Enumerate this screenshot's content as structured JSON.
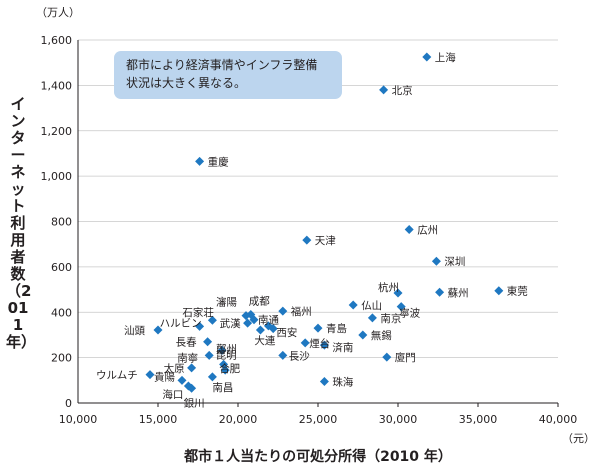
{
  "chart_data": {
    "type": "scatter",
    "ylabel": "インターネット利用者数（2011年）",
    "yunit": "（万人）",
    "xlabel": "都市１人当たりの可処分所得（2010 年）",
    "xunit": "（元）",
    "xlim": [
      10000,
      40000
    ],
    "ylim": [
      0,
      1600
    ],
    "xticks": [
      "10,000",
      "15,000",
      "20,000",
      "25,000",
      "30,000",
      "35,000",
      "40,000"
    ],
    "yticks": [
      "0",
      "200",
      "400",
      "600",
      "800",
      "1,000",
      "1,200",
      "1,400",
      "1,600"
    ],
    "grid": true,
    "marker_color": "#1f78c1",
    "annotation": [
      "都市により経済事情やインフラ整備",
      "状況は大きく異なる。"
    ],
    "points": [
      {
        "label": "上海",
        "x": 31800,
        "y": 1525
      },
      {
        "label": "北京",
        "x": 29100,
        "y": 1380
      },
      {
        "label": "重慶",
        "x": 17600,
        "y": 1065
      },
      {
        "label": "広州",
        "x": 30700,
        "y": 765
      },
      {
        "label": "天津",
        "x": 24300,
        "y": 718
      },
      {
        "label": "深圳",
        "x": 32400,
        "y": 625
      },
      {
        "label": "東莞",
        "x": 36300,
        "y": 495
      },
      {
        "label": "蘇州",
        "x": 32600,
        "y": 488
      },
      {
        "label": "杭州",
        "x": 30000,
        "y": 485
      },
      {
        "label": "寧波",
        "x": 30200,
        "y": 425
      },
      {
        "label": "仏山",
        "x": 27200,
        "y": 432
      },
      {
        "label": "南京",
        "x": 28400,
        "y": 375
      },
      {
        "label": "福州",
        "x": 22800,
        "y": 405
      },
      {
        "label": "成都",
        "x": 20800,
        "y": 390
      },
      {
        "label": "瀋陽",
        "x": 20500,
        "y": 385
      },
      {
        "label": "南通",
        "x": 21000,
        "y": 367
      },
      {
        "label": "武漢",
        "x": 20600,
        "y": 352
      },
      {
        "label": "西安",
        "x": 21900,
        "y": 340
      },
      {
        "label": "",
        "x": 22200,
        "y": 328
      },
      {
        "label": "大連",
        "x": 21400,
        "y": 322
      },
      {
        "label": "青島",
        "x": 25000,
        "y": 330
      },
      {
        "label": "無錫",
        "x": 27800,
        "y": 300
      },
      {
        "label": "煙台",
        "x": 24200,
        "y": 265
      },
      {
        "label": "済南",
        "x": 25400,
        "y": 255
      },
      {
        "label": "石家荘",
        "x": 18400,
        "y": 365
      },
      {
        "label": "ハルビン",
        "x": 17600,
        "y": 338
      },
      {
        "label": "汕頭",
        "x": 15000,
        "y": 322
      },
      {
        "label": "長春",
        "x": 18100,
        "y": 270
      },
      {
        "label": "鄭州",
        "x": 19000,
        "y": 232
      },
      {
        "label": "南寧",
        "x": 18200,
        "y": 210
      },
      {
        "label": "昆明",
        "x": 19100,
        "y": 170
      },
      {
        "label": "長沙",
        "x": 22800,
        "y": 210
      },
      {
        "label": "廈門",
        "x": 29300,
        "y": 202
      },
      {
        "label": "太原",
        "x": 17100,
        "y": 155
      },
      {
        "label": "合肥",
        "x": 19200,
        "y": 145
      },
      {
        "label": "ウルムチ",
        "x": 14500,
        "y": 125
      },
      {
        "label": "貴陽",
        "x": 16500,
        "y": 100
      },
      {
        "label": "南昌",
        "x": 18400,
        "y": 115
      },
      {
        "label": "海口",
        "x": 16900,
        "y": 75
      },
      {
        "label": "銀川",
        "x": 17100,
        "y": 65
      },
      {
        "label": "珠海",
        "x": 25400,
        "y": 95
      }
    ]
  }
}
